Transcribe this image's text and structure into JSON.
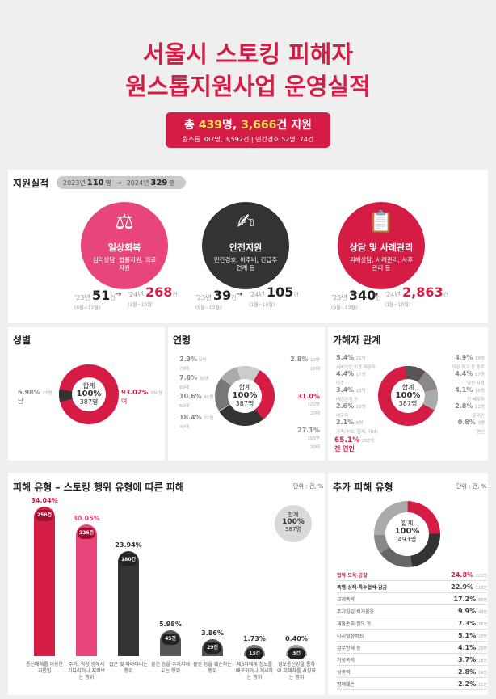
{
  "title": {
    "line1": "서울시 스토킹 피해자",
    "line2": "원스톱지원사업 운영실적"
  },
  "summary": {
    "prefix": "총 ",
    "people": "439",
    "mid": "명, ",
    "cases": "3,666",
    "suffix": "건 지원",
    "sub": "원스톱 387명, 3,592건 | 민간경호 52명, 74건"
  },
  "support": {
    "title": "지원실적",
    "y1": "2023년",
    "v1": "110",
    "y2": "2024년",
    "v2": "329",
    "unit": "명",
    "items": [
      {
        "name": "일상회복",
        "desc": "심리상담, 법률지원, 의료지원",
        "icon": "⚖",
        "color": "#e8457a",
        "a_yr": "'23년",
        "a_val": "51",
        "a_unit": "건",
        "a_sub": "(9월~12월)",
        "b_yr": "'24년",
        "b_val": "268",
        "b_unit": "건",
        "b_sub": "(1월~10월)"
      },
      {
        "name": "안전지원",
        "desc": "민간경호, 이주비, 긴급주연계 등",
        "icon": "✍",
        "color": "#333333",
        "a_yr": "'23년",
        "a_val": "39",
        "a_unit": "건",
        "a_sub": "(9월~12월)",
        "b_yr": "'24년",
        "b_val": "105",
        "b_unit": "건",
        "b_sub": "(1월~10월)"
      },
      {
        "name": "상담 및 사례관리",
        "desc": "피해상담, 사례관리, 사후관리 등",
        "icon": "📋",
        "color": "#d41c45",
        "a_yr": "'23년",
        "a_val": "340",
        "a_unit": "건",
        "a_sub": "(9월~12월)",
        "b_yr": "'24년",
        "b_val": "2,863",
        "b_unit": "건",
        "b_sub": "(1월~10월)"
      }
    ]
  },
  "gender": {
    "title": "성별",
    "center1": "합계",
    "center2": "100%",
    "center3": "387명",
    "male_pct": "6.98%",
    "male_cnt": "27명",
    "male_lbl": "남",
    "female_pct": "93.02%",
    "female_cnt": "360명",
    "female_lbl": "여"
  },
  "age": {
    "title": "연령",
    "center1": "합계",
    "center2": "100%",
    "center3": "387명",
    "left": [
      {
        "p": "2.3%",
        "c": "9명",
        "n": "70대"
      },
      {
        "p": "7.8%",
        "c": "30명",
        "n": "60대"
      },
      {
        "p": "10.6%",
        "c": "41명",
        "n": "50대"
      },
      {
        "p": "18.4%",
        "c": "71명",
        "n": "40대"
      }
    ],
    "right": [
      {
        "p": "2.8%",
        "c": "11명",
        "n": "10대"
      },
      {
        "p": "31.0%",
        "c": "120명",
        "n": "20대"
      },
      {
        "p": "27.1%",
        "c": "105명",
        "n": "30대"
      }
    ]
  },
  "rel": {
    "title": "가해자 관계",
    "center1": "합계",
    "center2": "100%",
    "center3": "387명",
    "left": [
      {
        "p": "5.4%",
        "c": "21명",
        "n": "서비스업 이용·제공자"
      },
      {
        "p": "4.4%",
        "c": "17명",
        "n": "이웃"
      },
      {
        "p": "3.4%",
        "c": "13명",
        "n": "내연관계 등"
      },
      {
        "p": "2.6%",
        "c": "10명",
        "n": "배우자"
      },
      {
        "p": "2.1%",
        "c": "8명",
        "n": "가족(부모, 형제, 자녀)"
      }
    ],
    "right": [
      {
        "p": "4.9%",
        "c": "19명",
        "n": "직장·학교 등 동료"
      },
      {
        "p": "4.4%",
        "c": "17명",
        "n": "낯선 사람"
      },
      {
        "p": "4.1%",
        "c": "16명",
        "n": "전 배우자"
      },
      {
        "p": "2.8%",
        "c": "11명",
        "n": "온라인"
      },
      {
        "p": "0.8%",
        "c": "3명",
        "n": "연인"
      }
    ],
    "main_p": "65.1%",
    "main_c": "252명",
    "main_n": "전 연인"
  },
  "damage": {
    "title": "피해 유형 – 스토킹 행위 유형에 따른 피해",
    "unit": "단위 : 건, %",
    "total1": "합계",
    "total2": "100%",
    "total3": "387명",
    "bars": [
      {
        "p": "34.04%",
        "c": "256건",
        "n": "통신매체를 이용한 괴롭힘",
        "color": "#d41c45"
      },
      {
        "p": "30.05%",
        "c": "226건",
        "n": "주거, 직장 등에서 기다리거나 지켜보는 행위",
        "color": "#e8457a"
      },
      {
        "p": "23.94%",
        "c": "180건",
        "n": "접근 및 따라다니는 행위",
        "color": "#333333"
      },
      {
        "p": "5.98%",
        "c": "45건",
        "n": "물건 등을 주거지에 두는 행위",
        "color": "#555555"
      },
      {
        "p": "3.86%",
        "c": "29건",
        "n": "물건 등을 훼손하는 행위",
        "color": "#555555"
      },
      {
        "p": "1.73%",
        "c": "13건",
        "n": "제3자에게 정보를 배포하거나 게시하는 행위",
        "color": "#777777"
      },
      {
        "p": "0.40%",
        "c": "3건",
        "n": "정보통신망을 통하여 피해자를 사칭하는 행위",
        "color": "#999999"
      }
    ]
  },
  "extra": {
    "title": "추가 피해 유형",
    "unit": "단위 : 건, %",
    "center1": "합계",
    "center2": "100%",
    "center3": "493명",
    "rows": [
      {
        "n": "협박·모욕·공갈",
        "p": "24.8%",
        "c": "122명"
      },
      {
        "n": "폭행·상해·특수협박·감금",
        "p": "22.9%",
        "c": "113명"
      },
      {
        "n": "교제폭력",
        "p": "17.2%",
        "c": "85명"
      },
      {
        "n": "주거침입·퇴거불응",
        "p": "9.9%",
        "c": "49명"
      },
      {
        "n": "재물손괴·절도 등",
        "p": "7.3%",
        "c": "36명"
      },
      {
        "n": "디지털성범죄",
        "p": "5.1%",
        "c": "25명"
      },
      {
        "n": "업무방해 등",
        "p": "4.1%",
        "c": "20명"
      },
      {
        "n": "가정폭력",
        "p": "3.7%",
        "c": "18명"
      },
      {
        "n": "성폭력",
        "p": "2.8%",
        "c": "14명"
      },
      {
        "n": "명예훼손",
        "p": "2.2%",
        "c": "11명"
      }
    ]
  },
  "colors": {
    "red": "#d41c45",
    "pink": "#e8457a",
    "dark": "#333333",
    "grey": "#888888"
  }
}
